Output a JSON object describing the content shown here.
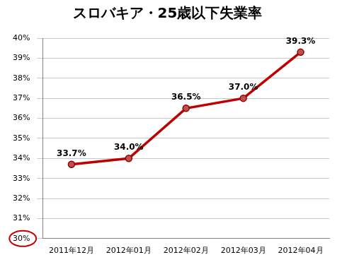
{
  "chart_data": {
    "type": "line",
    "title": "スロバキア・25歳以下失業率",
    "categories": [
      "2011年12月",
      "2012年01月",
      "2012年02月",
      "2012年03月",
      "2012年04月"
    ],
    "values": [
      33.7,
      34.0,
      36.5,
      37.0,
      39.3
    ],
    "value_labels": [
      "33.7%",
      "34.0%",
      "36.5%",
      "37.0%",
      "39.3%"
    ],
    "data_labels": true,
    "color": "#c00000",
    "marker": "circle",
    "ylim": [
      30,
      40
    ],
    "yticks": [
      {
        "value": 30,
        "label": "30%"
      },
      {
        "value": 31,
        "label": "31%"
      },
      {
        "value": 32,
        "label": "32%"
      },
      {
        "value": 33,
        "label": "33%"
      },
      {
        "value": 34,
        "label": "34%"
      },
      {
        "value": 35,
        "label": "35%"
      },
      {
        "value": 36,
        "label": "36%"
      },
      {
        "value": 37,
        "label": "37%"
      },
      {
        "value": 38,
        "label": "38%"
      },
      {
        "value": 39,
        "label": "39%"
      },
      {
        "value": 40,
        "label": "40%"
      }
    ],
    "grid": true
  }
}
